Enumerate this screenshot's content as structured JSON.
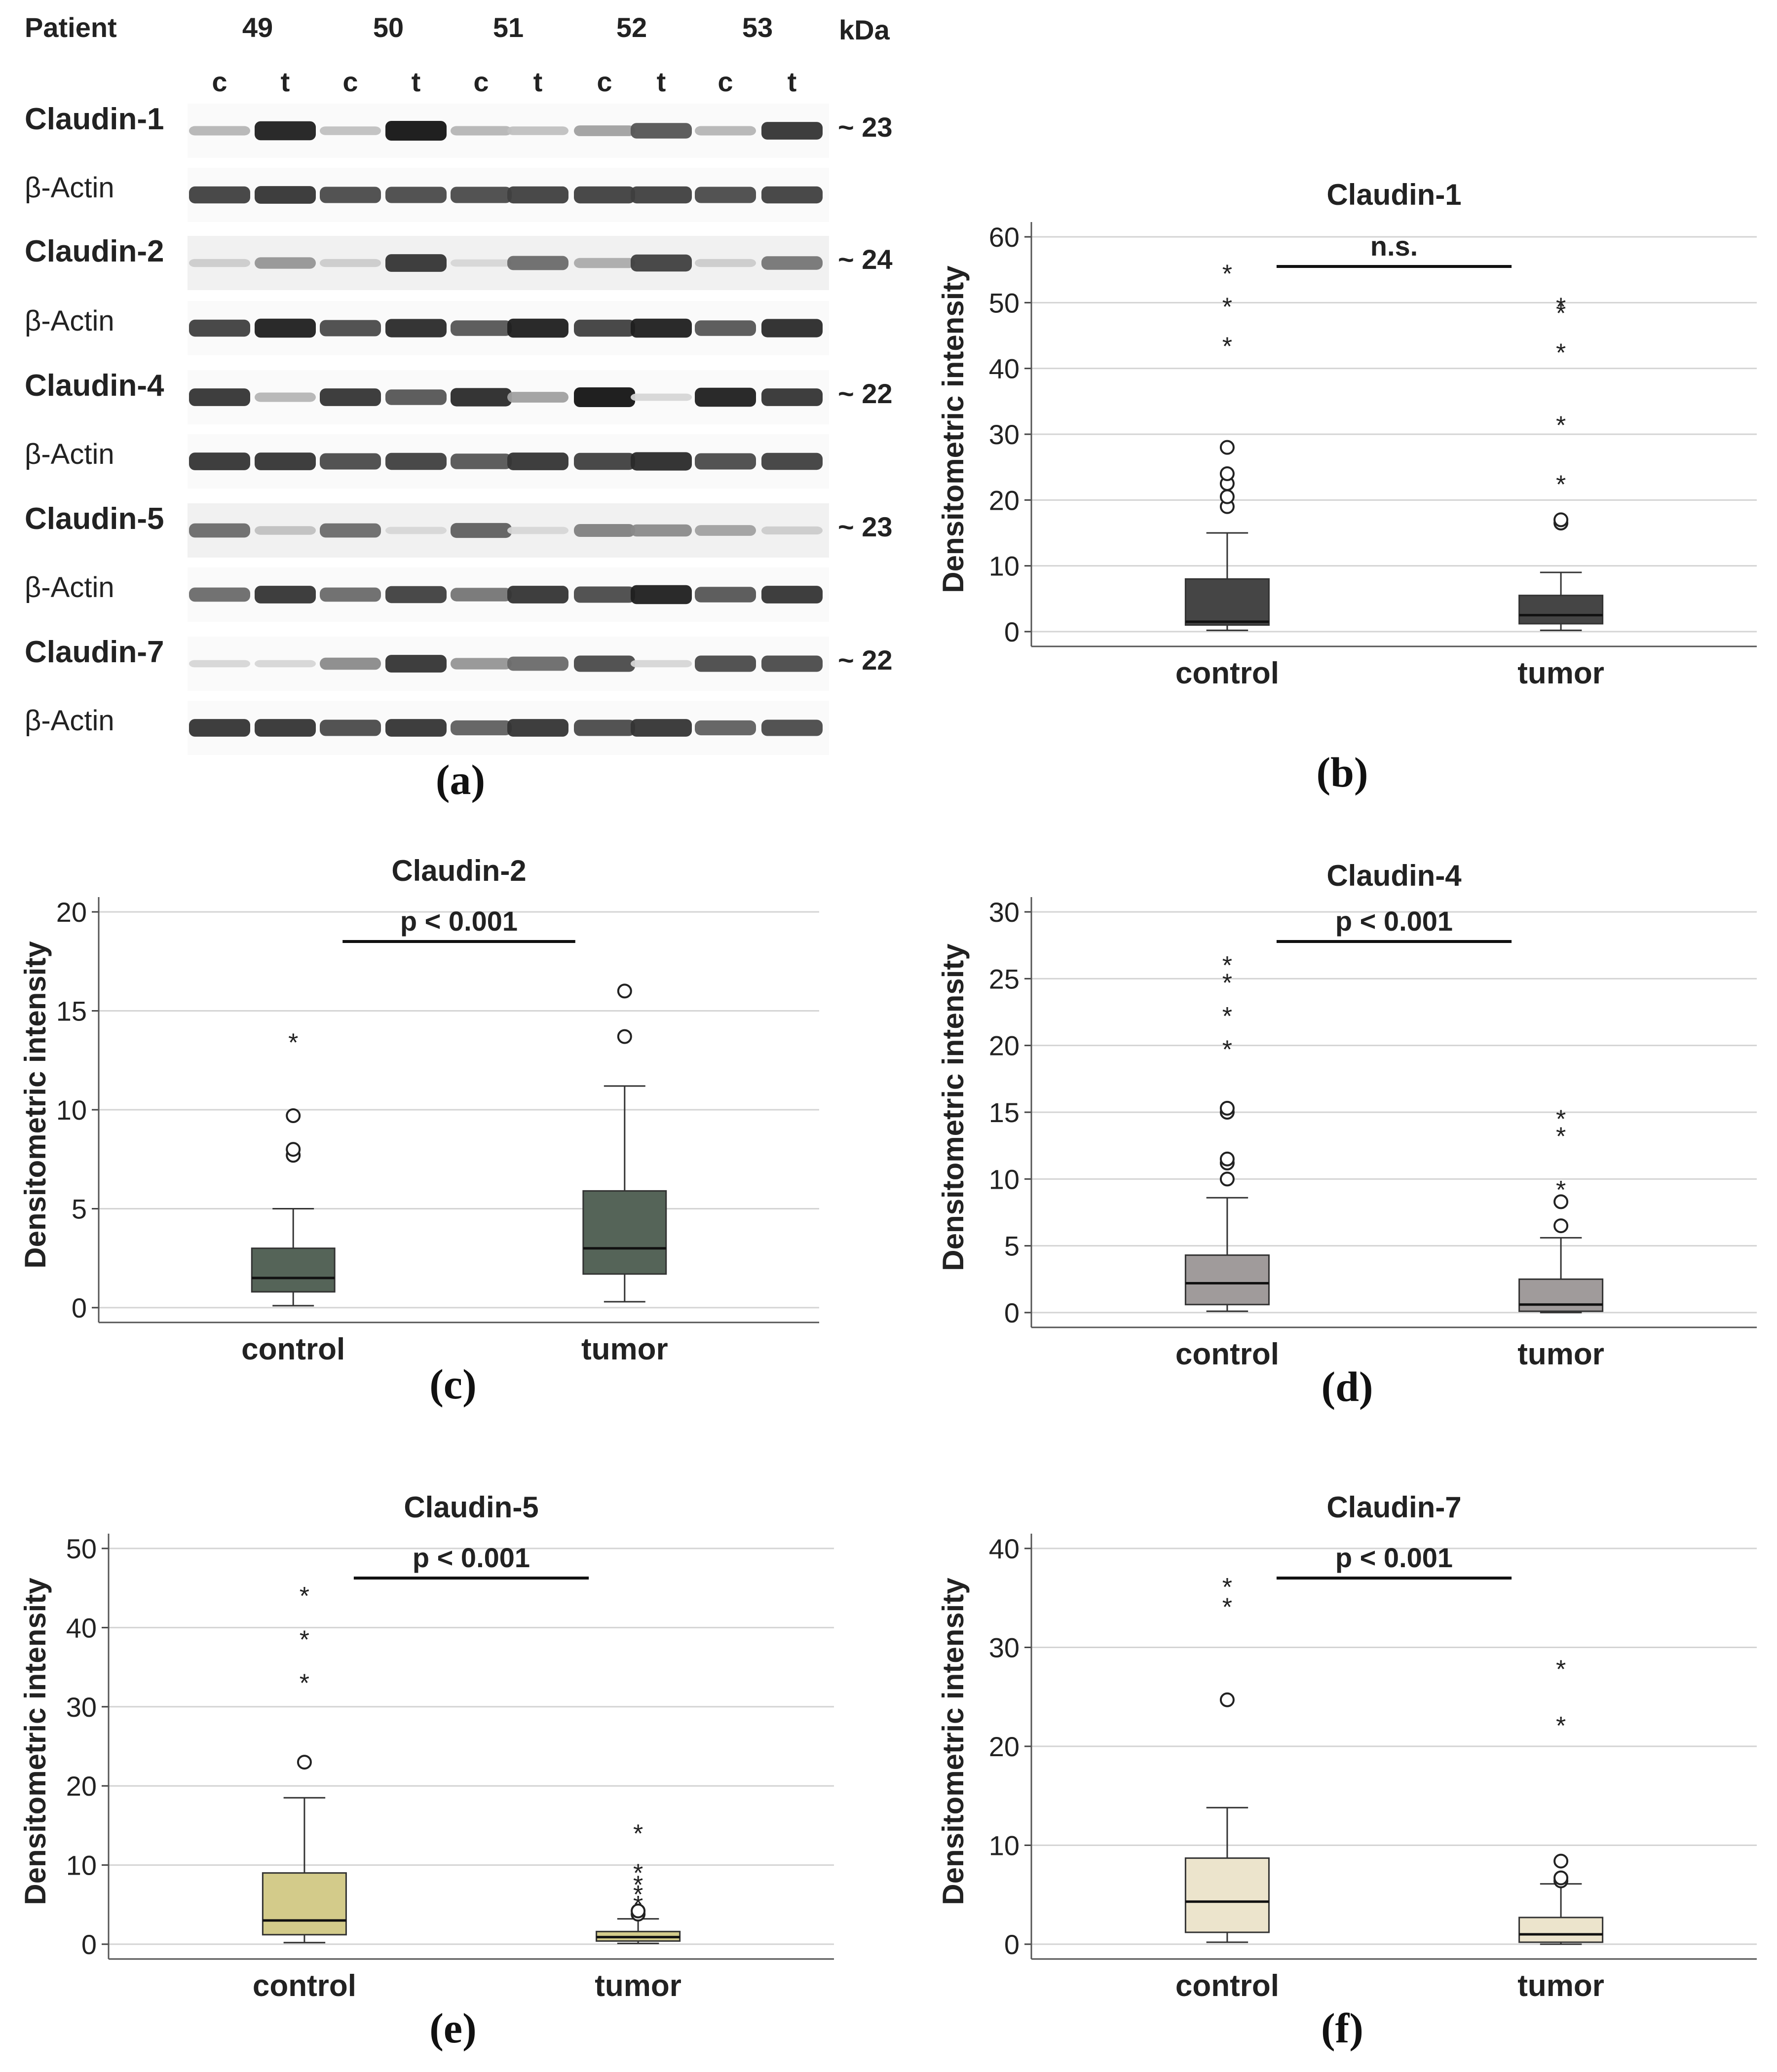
{
  "western_blot": {
    "patient_label": "Patient",
    "kda_label": "kDa",
    "patients": [
      "49",
      "50",
      "51",
      "52",
      "53"
    ],
    "lanes": [
      "c",
      "t",
      "c",
      "t",
      "c",
      "t",
      "c",
      "t",
      "c",
      "t"
    ],
    "rows": [
      {
        "label": "Claudin-1",
        "kda": "~ 23",
        "intensities": [
          0.25,
          0.95,
          0.2,
          1.0,
          0.25,
          0.2,
          0.35,
          0.7,
          0.25,
          0.85
        ]
      },
      {
        "label": "β-Actin",
        "intensities": [
          0.8,
          0.85,
          0.75,
          0.75,
          0.75,
          0.8,
          0.8,
          0.8,
          0.75,
          0.8
        ]
      },
      {
        "label": "Claudin-2",
        "kda": "~ 24",
        "intensities": [
          0.15,
          0.4,
          0.15,
          0.85,
          0.1,
          0.6,
          0.3,
          0.8,
          0.15,
          0.55
        ]
      },
      {
        "label": "β-Actin",
        "intensities": [
          0.8,
          0.95,
          0.75,
          0.9,
          0.7,
          0.95,
          0.8,
          0.95,
          0.7,
          0.9
        ]
      },
      {
        "label": "Claudin-4",
        "kda": "~ 22",
        "intensities": [
          0.85,
          0.25,
          0.85,
          0.7,
          0.9,
          0.35,
          1.0,
          0.1,
          0.95,
          0.85
        ]
      },
      {
        "label": "β-Actin",
        "intensities": [
          0.85,
          0.85,
          0.75,
          0.8,
          0.7,
          0.85,
          0.8,
          0.9,
          0.75,
          0.8
        ]
      },
      {
        "label": "Claudin-5",
        "kda": "~ 23",
        "intensities": [
          0.6,
          0.2,
          0.6,
          0.1,
          0.65,
          0.1,
          0.5,
          0.45,
          0.35,
          0.15
        ]
      },
      {
        "label": "β-Actin",
        "intensities": [
          0.6,
          0.85,
          0.6,
          0.8,
          0.55,
          0.85,
          0.75,
          0.95,
          0.7,
          0.85
        ]
      },
      {
        "label": "Claudin-7",
        "kda": "~ 22",
        "intensities": [
          0.1,
          0.1,
          0.45,
          0.85,
          0.4,
          0.6,
          0.75,
          0.1,
          0.75,
          0.75
        ]
      },
      {
        "label": "β-Actin",
        "intensities": [
          0.85,
          0.85,
          0.75,
          0.85,
          0.65,
          0.85,
          0.75,
          0.85,
          0.65,
          0.75
        ]
      }
    ]
  },
  "panel_labels": [
    "(a)",
    "(b)",
    "(c)",
    "(d)",
    "(e)",
    "(f)"
  ],
  "chart_data": [
    {
      "type": "box",
      "title": "Claudin-1",
      "ylabel": "Densitometric intensity",
      "categories": [
        "control",
        "tumor"
      ],
      "ylim": [
        0,
        60
      ],
      "yticks": [
        0,
        10,
        20,
        30,
        40,
        50,
        60
      ],
      "grid": true,
      "annotation": "n.s.",
      "fill": "#454545",
      "boxes": [
        {
          "min": 0.2,
          "q1": 1,
          "median": 1.5,
          "q3": 8,
          "max": 15,
          "outliers": [
            19,
            20.5,
            22.5,
            24,
            28
          ],
          "extremes": [
            44,
            50,
            55
          ]
        },
        {
          "min": 0.2,
          "q1": 1.2,
          "median": 2.5,
          "q3": 5.5,
          "max": 9,
          "outliers": [
            16.5,
            17
          ],
          "extremes": [
            23,
            32,
            43,
            49,
            50
          ]
        }
      ]
    },
    {
      "type": "box",
      "title": "Claudin-2",
      "ylabel": "Densitometric intensity",
      "categories": [
        "control",
        "tumor"
      ],
      "ylim": [
        0,
        20
      ],
      "yticks": [
        0,
        5,
        10,
        15,
        20
      ],
      "grid": true,
      "annotation": "p < 0.001",
      "fill": "#556458",
      "boxes": [
        {
          "min": 0.1,
          "q1": 0.8,
          "median": 1.5,
          "q3": 3.0,
          "max": 5.0,
          "outliers": [
            7.7,
            8.0,
            9.7
          ],
          "extremes": [
            13.6
          ]
        },
        {
          "min": 0.3,
          "q1": 1.7,
          "median": 3.0,
          "q3": 5.9,
          "max": 11.2,
          "outliers": [
            13.7,
            16.0
          ],
          "extremes": []
        }
      ]
    },
    {
      "type": "box",
      "title": "Claudin-4",
      "ylabel": "Densitometric intensity",
      "categories": [
        "control",
        "tumor"
      ],
      "ylim": [
        0,
        30
      ],
      "yticks": [
        0,
        5,
        10,
        15,
        20,
        25,
        30
      ],
      "grid": true,
      "annotation": "p < 0.001",
      "fill": "#a09b9b",
      "boxes": [
        {
          "min": 0.1,
          "q1": 0.6,
          "median": 2.2,
          "q3": 4.3,
          "max": 8.6,
          "outliers": [
            10.0,
            11.2,
            11.5,
            15.0,
            15.3
          ],
          "extremes": [
            20.0,
            22.5,
            25.0,
            26.3
          ]
        },
        {
          "min": 0.0,
          "q1": 0.1,
          "median": 0.6,
          "q3": 2.5,
          "max": 5.6,
          "outliers": [
            6.5,
            8.3
          ],
          "extremes": [
            9.5,
            13.5,
            14.8
          ]
        }
      ]
    },
    {
      "type": "box",
      "title": "Claudin-5",
      "ylabel": "Densitometric intensity",
      "categories": [
        "control",
        "tumor"
      ],
      "ylim": [
        0,
        50
      ],
      "yticks": [
        0,
        10,
        20,
        30,
        40,
        50
      ],
      "grid": true,
      "annotation": "p < 0.001",
      "fill": "#d3cb8a",
      "boxes": [
        {
          "min": 0.2,
          "q1": 1.2,
          "median": 3.0,
          "q3": 9.0,
          "max": 18.5,
          "outliers": [
            23.0
          ],
          "extremes": [
            33.5,
            39.0,
            44.5
          ]
        },
        {
          "min": 0.1,
          "q1": 0.4,
          "median": 0.9,
          "q3": 1.6,
          "max": 3.2,
          "outliers": [
            3.8,
            4.2
          ],
          "extremes": [
            5.5,
            6.8,
            8.0,
            9.5,
            14.5
          ]
        }
      ]
    },
    {
      "type": "box",
      "title": "Claudin-7",
      "ylabel": "Densitometric intensity",
      "categories": [
        "control",
        "tumor"
      ],
      "ylim": [
        0,
        40
      ],
      "yticks": [
        0,
        10,
        20,
        30,
        40
      ],
      "grid": true,
      "annotation": "p < 0.001",
      "fill": "#ece4cc",
      "boxes": [
        {
          "min": 0.2,
          "q1": 1.2,
          "median": 4.3,
          "q3": 8.7,
          "max": 13.8,
          "outliers": [
            24.7
          ],
          "extremes": [
            34.5,
            36.5
          ]
        },
        {
          "min": 0.0,
          "q1": 0.2,
          "median": 1.0,
          "q3": 2.7,
          "max": 6.1,
          "outliers": [
            6.4,
            6.7,
            8.4
          ],
          "extremes": [
            22.5,
            28.2
          ]
        }
      ]
    }
  ]
}
